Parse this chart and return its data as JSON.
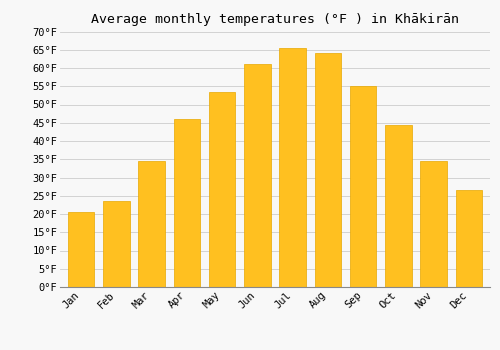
{
  "title": "Average monthly temperatures (°F ) in Khākirān",
  "months": [
    "Jan",
    "Feb",
    "Mar",
    "Apr",
    "May",
    "Jun",
    "Jul",
    "Aug",
    "Sep",
    "Oct",
    "Nov",
    "Dec"
  ],
  "values": [
    20.5,
    23.5,
    34.5,
    46.0,
    53.5,
    61.0,
    65.5,
    64.0,
    55.0,
    44.5,
    34.5,
    26.5
  ],
  "bar_color": "#FFC020",
  "bar_edge_color": "#E8A800",
  "background_color": "#F8F8F8",
  "grid_color": "#CCCCCC",
  "ylim": [
    0,
    70
  ],
  "yticks": [
    0,
    5,
    10,
    15,
    20,
    25,
    30,
    35,
    40,
    45,
    50,
    55,
    60,
    65,
    70
  ],
  "ytick_labels": [
    "0°F",
    "5°F",
    "10°F",
    "15°F",
    "20°F",
    "25°F",
    "30°F",
    "35°F",
    "40°F",
    "45°F",
    "50°F",
    "55°F",
    "60°F",
    "65°F",
    "70°F"
  ],
  "title_fontsize": 9.5,
  "tick_fontsize": 7.5,
  "font_family": "monospace",
  "bar_width": 0.75
}
